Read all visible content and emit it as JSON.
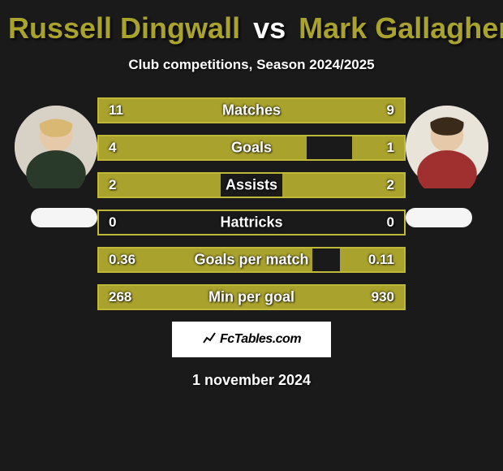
{
  "title": {
    "player1": "Russell Dingwall",
    "vs": "vs",
    "player2": "Mark Gallagher"
  },
  "subtitle": "Club competitions, Season 2024/2025",
  "colors": {
    "player1": "#a9a22c",
    "player2": "#a9a22c",
    "border": "#c0b938",
    "text": "#fefefe",
    "background": "#1a1a1a",
    "badge_bg": "#ffffff",
    "avatar_bg": "#d8d2c6"
  },
  "stats": [
    {
      "label": "Matches",
      "val1": "11",
      "val2": "9",
      "pct1": 55,
      "pct2": 45
    },
    {
      "label": "Goals",
      "val1": "4",
      "val2": "1",
      "pct1": 68,
      "pct2": 17
    },
    {
      "label": "Assists",
      "val1": "2",
      "val2": "2",
      "pct1": 40,
      "pct2": 40
    },
    {
      "label": "Hattricks",
      "val1": "0",
      "val2": "0",
      "pct1": 0,
      "pct2": 0
    },
    {
      "label": "Goals per match",
      "val1": "0.36",
      "val2": "0.11",
      "pct1": 70,
      "pct2": 21
    },
    {
      "label": "Min per goal",
      "val1": "268",
      "val2": "930",
      "pct1": 22,
      "pct2": 78
    }
  ],
  "badge": "FcTables.com",
  "date": "1 november 2024"
}
